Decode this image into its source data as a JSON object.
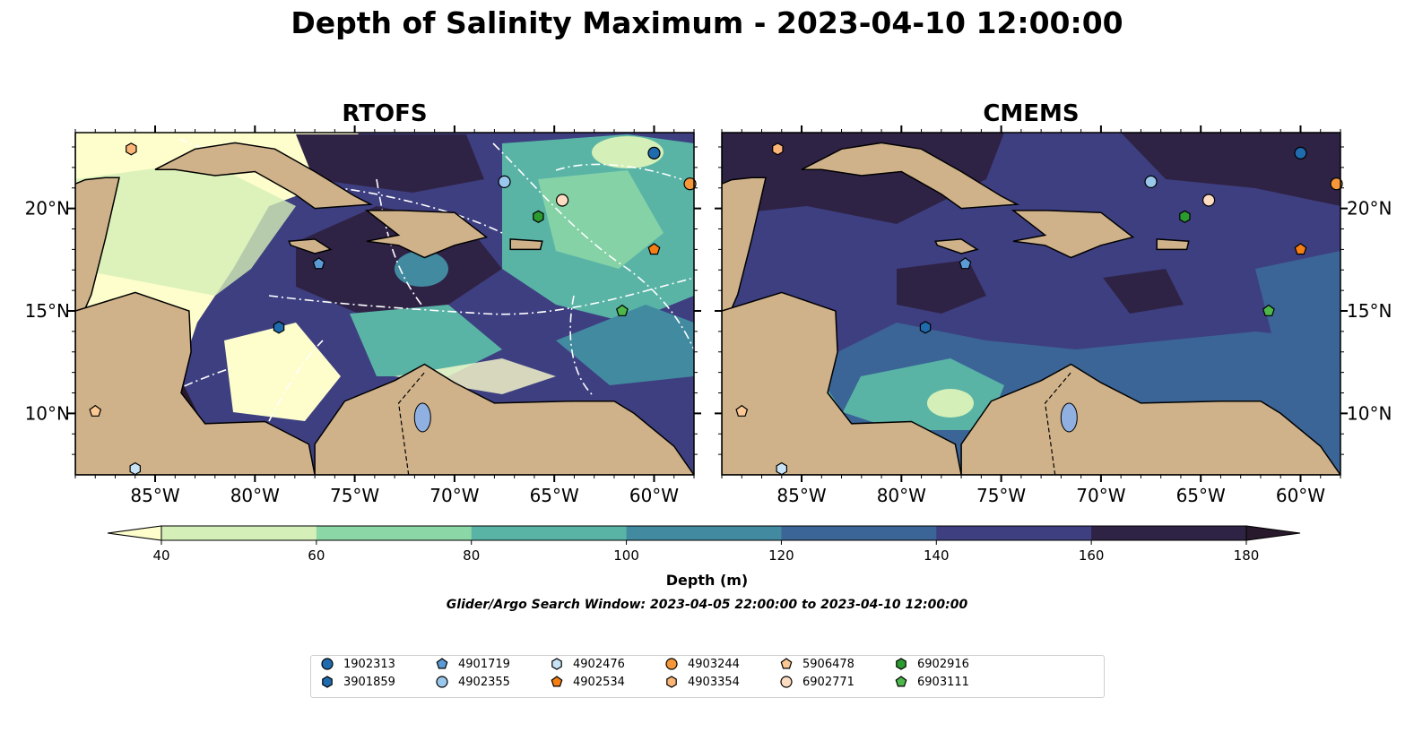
{
  "title": "Depth of Salinity Maximum - 2023-04-10 12:00:00",
  "panels": [
    {
      "id": "rtofs",
      "title": "RTOFS"
    },
    {
      "id": "cmems",
      "title": "CMEMS"
    }
  ],
  "map_extent": {
    "lon": [
      -89,
      -58
    ],
    "lat": [
      7,
      23.7
    ]
  },
  "x_ticks": [
    "85°W",
    "80°W",
    "75°W",
    "70°W",
    "65°W",
    "60°W"
  ],
  "x_tick_values": [
    -85,
    -80,
    -75,
    -70,
    -65,
    -60
  ],
  "y_ticks": [
    "20°N",
    "15°N",
    "10°N"
  ],
  "y_tick_values": [
    20,
    15,
    10
  ],
  "colorbar": {
    "label": "Depth (m)",
    "ticks": [
      "40",
      "60",
      "80",
      "100",
      "120",
      "140",
      "160",
      "180"
    ],
    "colors": [
      "#fdfecc",
      "#d4efb7",
      "#8cd7a6",
      "#59b4a6",
      "#428aa0",
      "#3b6596",
      "#3e3f81",
      "#2f2345",
      "#281a2c"
    ],
    "extend": "both"
  },
  "search_window": "Glider/Argo Search Window: 2023-04-05 22:00:00 to 2023-04-10 12:00:00",
  "legend": {
    "placement": "bottom-center",
    "entries": [
      {
        "id": "1902313",
        "marker": "circle",
        "color": "#1f6bad"
      },
      {
        "id": "3901859",
        "marker": "hexagon",
        "color": "#1f6bad"
      },
      {
        "id": "4901719",
        "marker": "pentagon",
        "color": "#5a9bd5"
      },
      {
        "id": "4902355",
        "marker": "circle",
        "color": "#9ac8ec"
      },
      {
        "id": "4902476",
        "marker": "hexagon",
        "color": "#c7e3f6"
      },
      {
        "id": "4902534",
        "marker": "pentagon",
        "color": "#f57f15"
      },
      {
        "id": "4903244",
        "marker": "circle",
        "color": "#f59638"
      },
      {
        "id": "4903354",
        "marker": "hexagon",
        "color": "#fbb576"
      },
      {
        "id": "5906478",
        "marker": "pentagon",
        "color": "#fcc894"
      },
      {
        "id": "6902771",
        "marker": "circle",
        "color": "#fedcc1"
      },
      {
        "id": "6902916",
        "marker": "hexagon",
        "color": "#2b9a2f"
      },
      {
        "id": "6903111",
        "marker": "pentagon",
        "color": "#4db74a"
      }
    ]
  },
  "floats": [
    {
      "id": "1902313",
      "lon": -60.0,
      "lat": 22.7
    },
    {
      "id": "4903244",
      "lon": -58.2,
      "lat": 21.2
    },
    {
      "id": "4902355",
      "lon": -67.5,
      "lat": 21.3
    },
    {
      "id": "6902771",
      "lon": -64.6,
      "lat": 20.4
    },
    {
      "id": "6902916",
      "lon": -65.8,
      "lat": 19.6
    },
    {
      "id": "4902534",
      "lon": -60.0,
      "lat": 18.0
    },
    {
      "id": "4901719",
      "lon": -76.8,
      "lat": 17.3
    },
    {
      "id": "6903111",
      "lon": -61.6,
      "lat": 15.0
    },
    {
      "id": "3901859",
      "lon": -78.8,
      "lat": 14.2
    },
    {
      "id": "4903354",
      "lon": -86.2,
      "lat": 22.9
    },
    {
      "id": "5906478",
      "lon": -88.0,
      "lat": 10.1
    },
    {
      "id": "4902476",
      "lon": -86.0,
      "lat": 7.3
    }
  ]
}
